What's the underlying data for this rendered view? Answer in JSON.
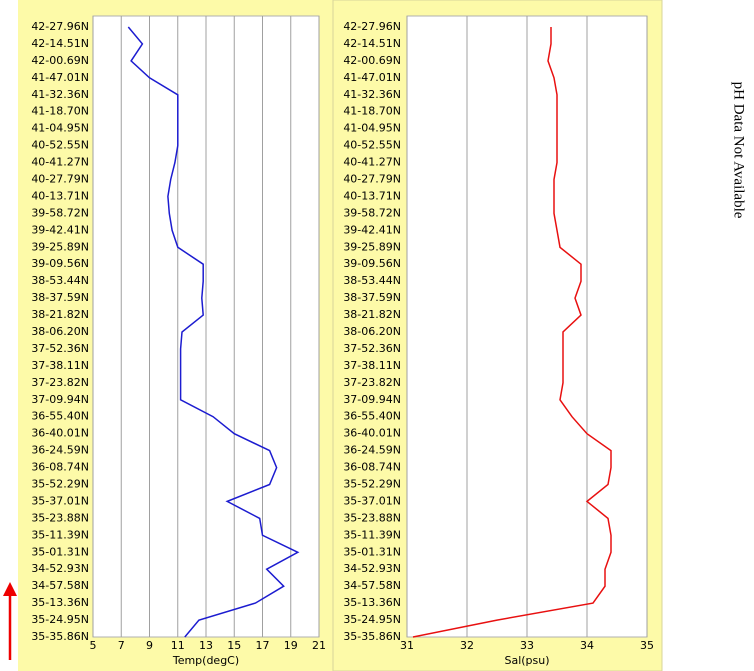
{
  "chart_data": [
    {
      "type": "line",
      "xlabel": "Temp(degC)",
      "categories": [
        "35-35.86N",
        "35-24.95N",
        "35-13.36N",
        "34-57.58N",
        "34-52.93N",
        "35-01.31N",
        "35-11.39N",
        "35-23.88N",
        "35-37.01N",
        "35-52.29N",
        "36-08.74N",
        "36-24.59N",
        "36-40.01N",
        "36-55.40N",
        "37-09.94N",
        "37-23.82N",
        "37-38.11N",
        "37-52.36N",
        "38-06.20N",
        "38-21.82N",
        "38-37.59N",
        "38-53.44N",
        "39-09.56N",
        "39-25.89N",
        "39-42.41N",
        "39-58.72N",
        "40-13.71N",
        "40-27.79N",
        "40-41.27N",
        "40-52.55N",
        "41-04.95N",
        "41-18.70N",
        "41-32.36N",
        "41-47.01N",
        "42-00.69N",
        "42-14.51N",
        "42-27.96N"
      ],
      "series": [
        {
          "color": "#1c1cd0",
          "values": [
            11.5,
            12.5,
            16.5,
            18.5,
            17.3,
            19.5,
            17,
            16.8,
            14.5,
            17.5,
            18,
            17.5,
            15,
            13.5,
            11.2,
            11.2,
            11.2,
            11.2,
            11.3,
            12.8,
            12.7,
            12.8,
            12.8,
            11,
            10.6,
            10.4,
            10.3,
            10.5,
            10.8,
            11,
            11,
            11,
            11,
            9,
            7.7,
            8.5,
            7.5
          ]
        }
      ],
      "xlim": [
        5,
        21
      ],
      "xticks": [
        5,
        7,
        9,
        11,
        13,
        15,
        17,
        19,
        21
      ],
      "grid": true
    },
    {
      "type": "line",
      "xlabel": "Sal(psu)",
      "categories": [
        "35-35.86N",
        "35-24.95N",
        "35-13.36N",
        "34-57.58N",
        "34-52.93N",
        "35-01.31N",
        "35-11.39N",
        "35-23.88N",
        "35-37.01N",
        "35-52.29N",
        "36-08.74N",
        "36-24.59N",
        "36-40.01N",
        "36-55.40N",
        "37-09.94N",
        "37-23.82N",
        "37-38.11N",
        "37-52.36N",
        "38-06.20N",
        "38-21.82N",
        "38-37.59N",
        "38-53.44N",
        "39-09.56N",
        "39-25.89N",
        "39-42.41N",
        "39-58.72N",
        "40-13.71N",
        "40-27.79N",
        "40-41.27N",
        "40-52.55N",
        "41-04.95N",
        "41-18.70N",
        "41-32.36N",
        "41-47.01N",
        "42-00.69N",
        "42-14.51N",
        "42-27.96N"
      ],
      "series": [
        {
          "color": "#e81010",
          "values": [
            31.1,
            32.5,
            34.1,
            34.3,
            34.3,
            34.4,
            34.4,
            34.35,
            34,
            34.35,
            34.4,
            34.4,
            34,
            33.75,
            33.55,
            33.6,
            33.6,
            33.6,
            33.6,
            33.9,
            33.8,
            33.9,
            33.9,
            33.55,
            33.5,
            33.45,
            33.45,
            33.45,
            33.5,
            33.5,
            33.5,
            33.5,
            33.5,
            33.45,
            33.35,
            33.4,
            33.4
          ]
        }
      ],
      "xlim": [
        31,
        35
      ],
      "xticks": [
        31,
        32,
        33,
        34,
        35
      ],
      "grid": true
    }
  ],
  "side_text": "pH Data Not Available"
}
